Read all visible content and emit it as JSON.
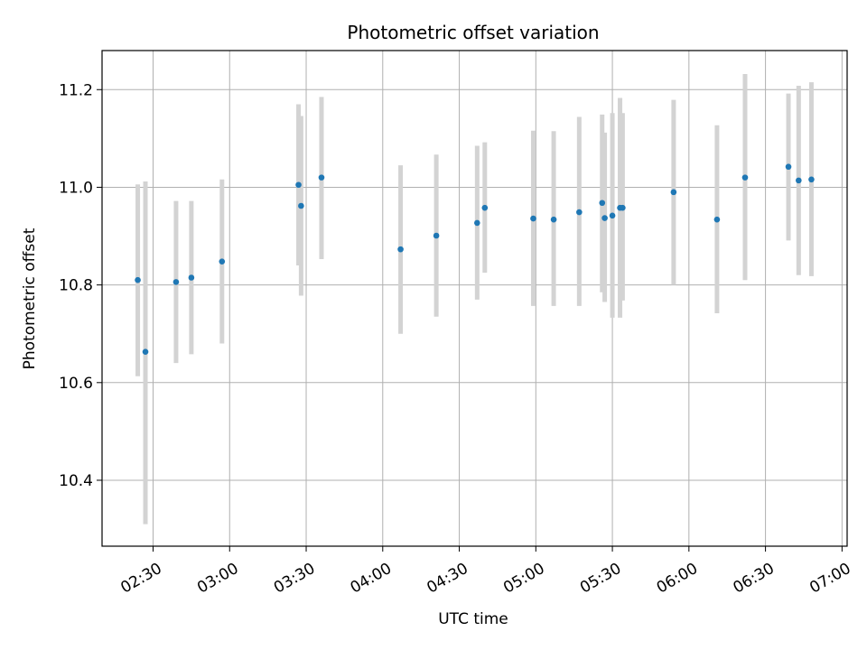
{
  "chart_data": {
    "type": "scatter",
    "title": "Photometric offset variation",
    "xlabel": "UTC time",
    "ylabel": "Photometric offset",
    "xlim": [
      "02:10",
      "07:02"
    ],
    "ylim": [
      10.265,
      11.28
    ],
    "grid": true,
    "x_ticks": [
      "02:30",
      "03:00",
      "03:30",
      "04:00",
      "04:30",
      "05:00",
      "05:30",
      "06:00",
      "06:30",
      "07:00"
    ],
    "y_ticks": [
      10.4,
      10.6,
      10.8,
      11.0,
      11.2
    ],
    "y_tick_labels": [
      "10.4",
      "10.6",
      "10.8",
      "11.0",
      "11.2"
    ],
    "point_color": "#1f77b4",
    "errorbar_color": "#d3d3d3",
    "points": [
      {
        "x": "02:24",
        "y": 10.81,
        "ylow": 10.613,
        "yhigh": 11.006
      },
      {
        "x": "02:27",
        "y": 10.663,
        "ylow": 10.31,
        "yhigh": 11.012
      },
      {
        "x": "02:39",
        "y": 10.806,
        "ylow": 10.64,
        "yhigh": 10.972
      },
      {
        "x": "02:45",
        "y": 10.815,
        "ylow": 10.658,
        "yhigh": 10.972
      },
      {
        "x": "02:57",
        "y": 10.848,
        "ylow": 10.68,
        "yhigh": 11.016
      },
      {
        "x": "03:27",
        "y": 11.005,
        "ylow": 10.84,
        "yhigh": 11.17
      },
      {
        "x": "03:28",
        "y": 10.962,
        "ylow": 10.778,
        "yhigh": 11.146
      },
      {
        "x": "03:36",
        "y": 11.02,
        "ylow": 10.853,
        "yhigh": 11.185
      },
      {
        "x": "04:07",
        "y": 10.873,
        "ylow": 10.7,
        "yhigh": 11.045
      },
      {
        "x": "04:21",
        "y": 10.901,
        "ylow": 10.735,
        "yhigh": 11.067
      },
      {
        "x": "04:37",
        "y": 10.927,
        "ylow": 10.77,
        "yhigh": 11.085
      },
      {
        "x": "04:40",
        "y": 10.958,
        "ylow": 10.825,
        "yhigh": 11.092
      },
      {
        "x": "04:59",
        "y": 10.936,
        "ylow": 10.757,
        "yhigh": 11.116
      },
      {
        "x": "05:07",
        "y": 10.934,
        "ylow": 10.757,
        "yhigh": 11.115
      },
      {
        "x": "05:17",
        "y": 10.949,
        "ylow": 10.757,
        "yhigh": 11.144
      },
      {
        "x": "05:26",
        "y": 10.968,
        "ylow": 10.785,
        "yhigh": 11.149
      },
      {
        "x": "05:27",
        "y": 10.937,
        "ylow": 10.765,
        "yhigh": 11.112
      },
      {
        "x": "05:30",
        "y": 10.942,
        "ylow": 10.733,
        "yhigh": 11.152
      },
      {
        "x": "05:33",
        "y": 10.958,
        "ylow": 10.733,
        "yhigh": 11.183
      },
      {
        "x": "05:34",
        "y": 10.958,
        "ylow": 10.768,
        "yhigh": 11.152
      },
      {
        "x": "05:54",
        "y": 10.99,
        "ylow": 10.8,
        "yhigh": 11.179
      },
      {
        "x": "06:11",
        "y": 10.934,
        "ylow": 10.742,
        "yhigh": 11.127
      },
      {
        "x": "06:22",
        "y": 11.02,
        "ylow": 10.81,
        "yhigh": 11.232
      },
      {
        "x": "06:39",
        "y": 11.042,
        "ylow": 10.891,
        "yhigh": 11.192
      },
      {
        "x": "06:43",
        "y": 11.014,
        "ylow": 10.82,
        "yhigh": 11.208
      },
      {
        "x": "06:48",
        "y": 11.016,
        "ylow": 10.818,
        "yhigh": 11.215
      }
    ]
  }
}
